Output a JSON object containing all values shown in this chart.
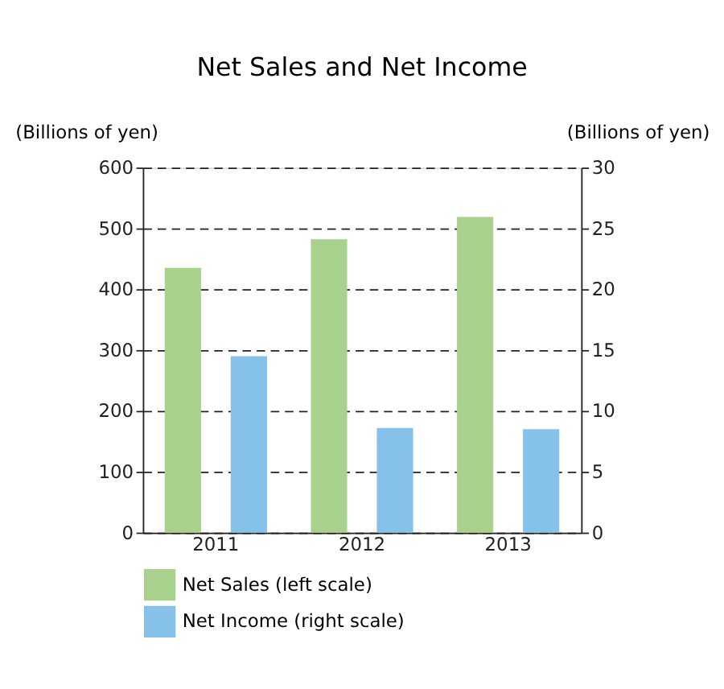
{
  "chart_data": {
    "type": "bar",
    "title": "Net Sales and Net Income",
    "categories": [
      "2011",
      "2012",
      "2013"
    ],
    "series": [
      {
        "name": "Net Sales (left scale)",
        "color": "#a9d18e",
        "values": [
          435,
          482,
          519
        ]
      },
      {
        "name": "Net Income (right scale)",
        "color": "#86c1ea",
        "values": [
          14.5,
          8.6,
          8.5
        ],
        "axis": "y2"
      }
    ],
    "ylabel": "(Billions of yen)",
    "y2label": "(Billions of yen)",
    "ylim": [
      0,
      600
    ],
    "yticks": [
      0,
      100,
      200,
      300,
      400,
      500,
      600
    ],
    "y2lim": [
      0,
      30
    ],
    "y2ticks": [
      0,
      5,
      10,
      15,
      20,
      25,
      30
    ],
    "grid": "y",
    "legend": "bottom left"
  }
}
